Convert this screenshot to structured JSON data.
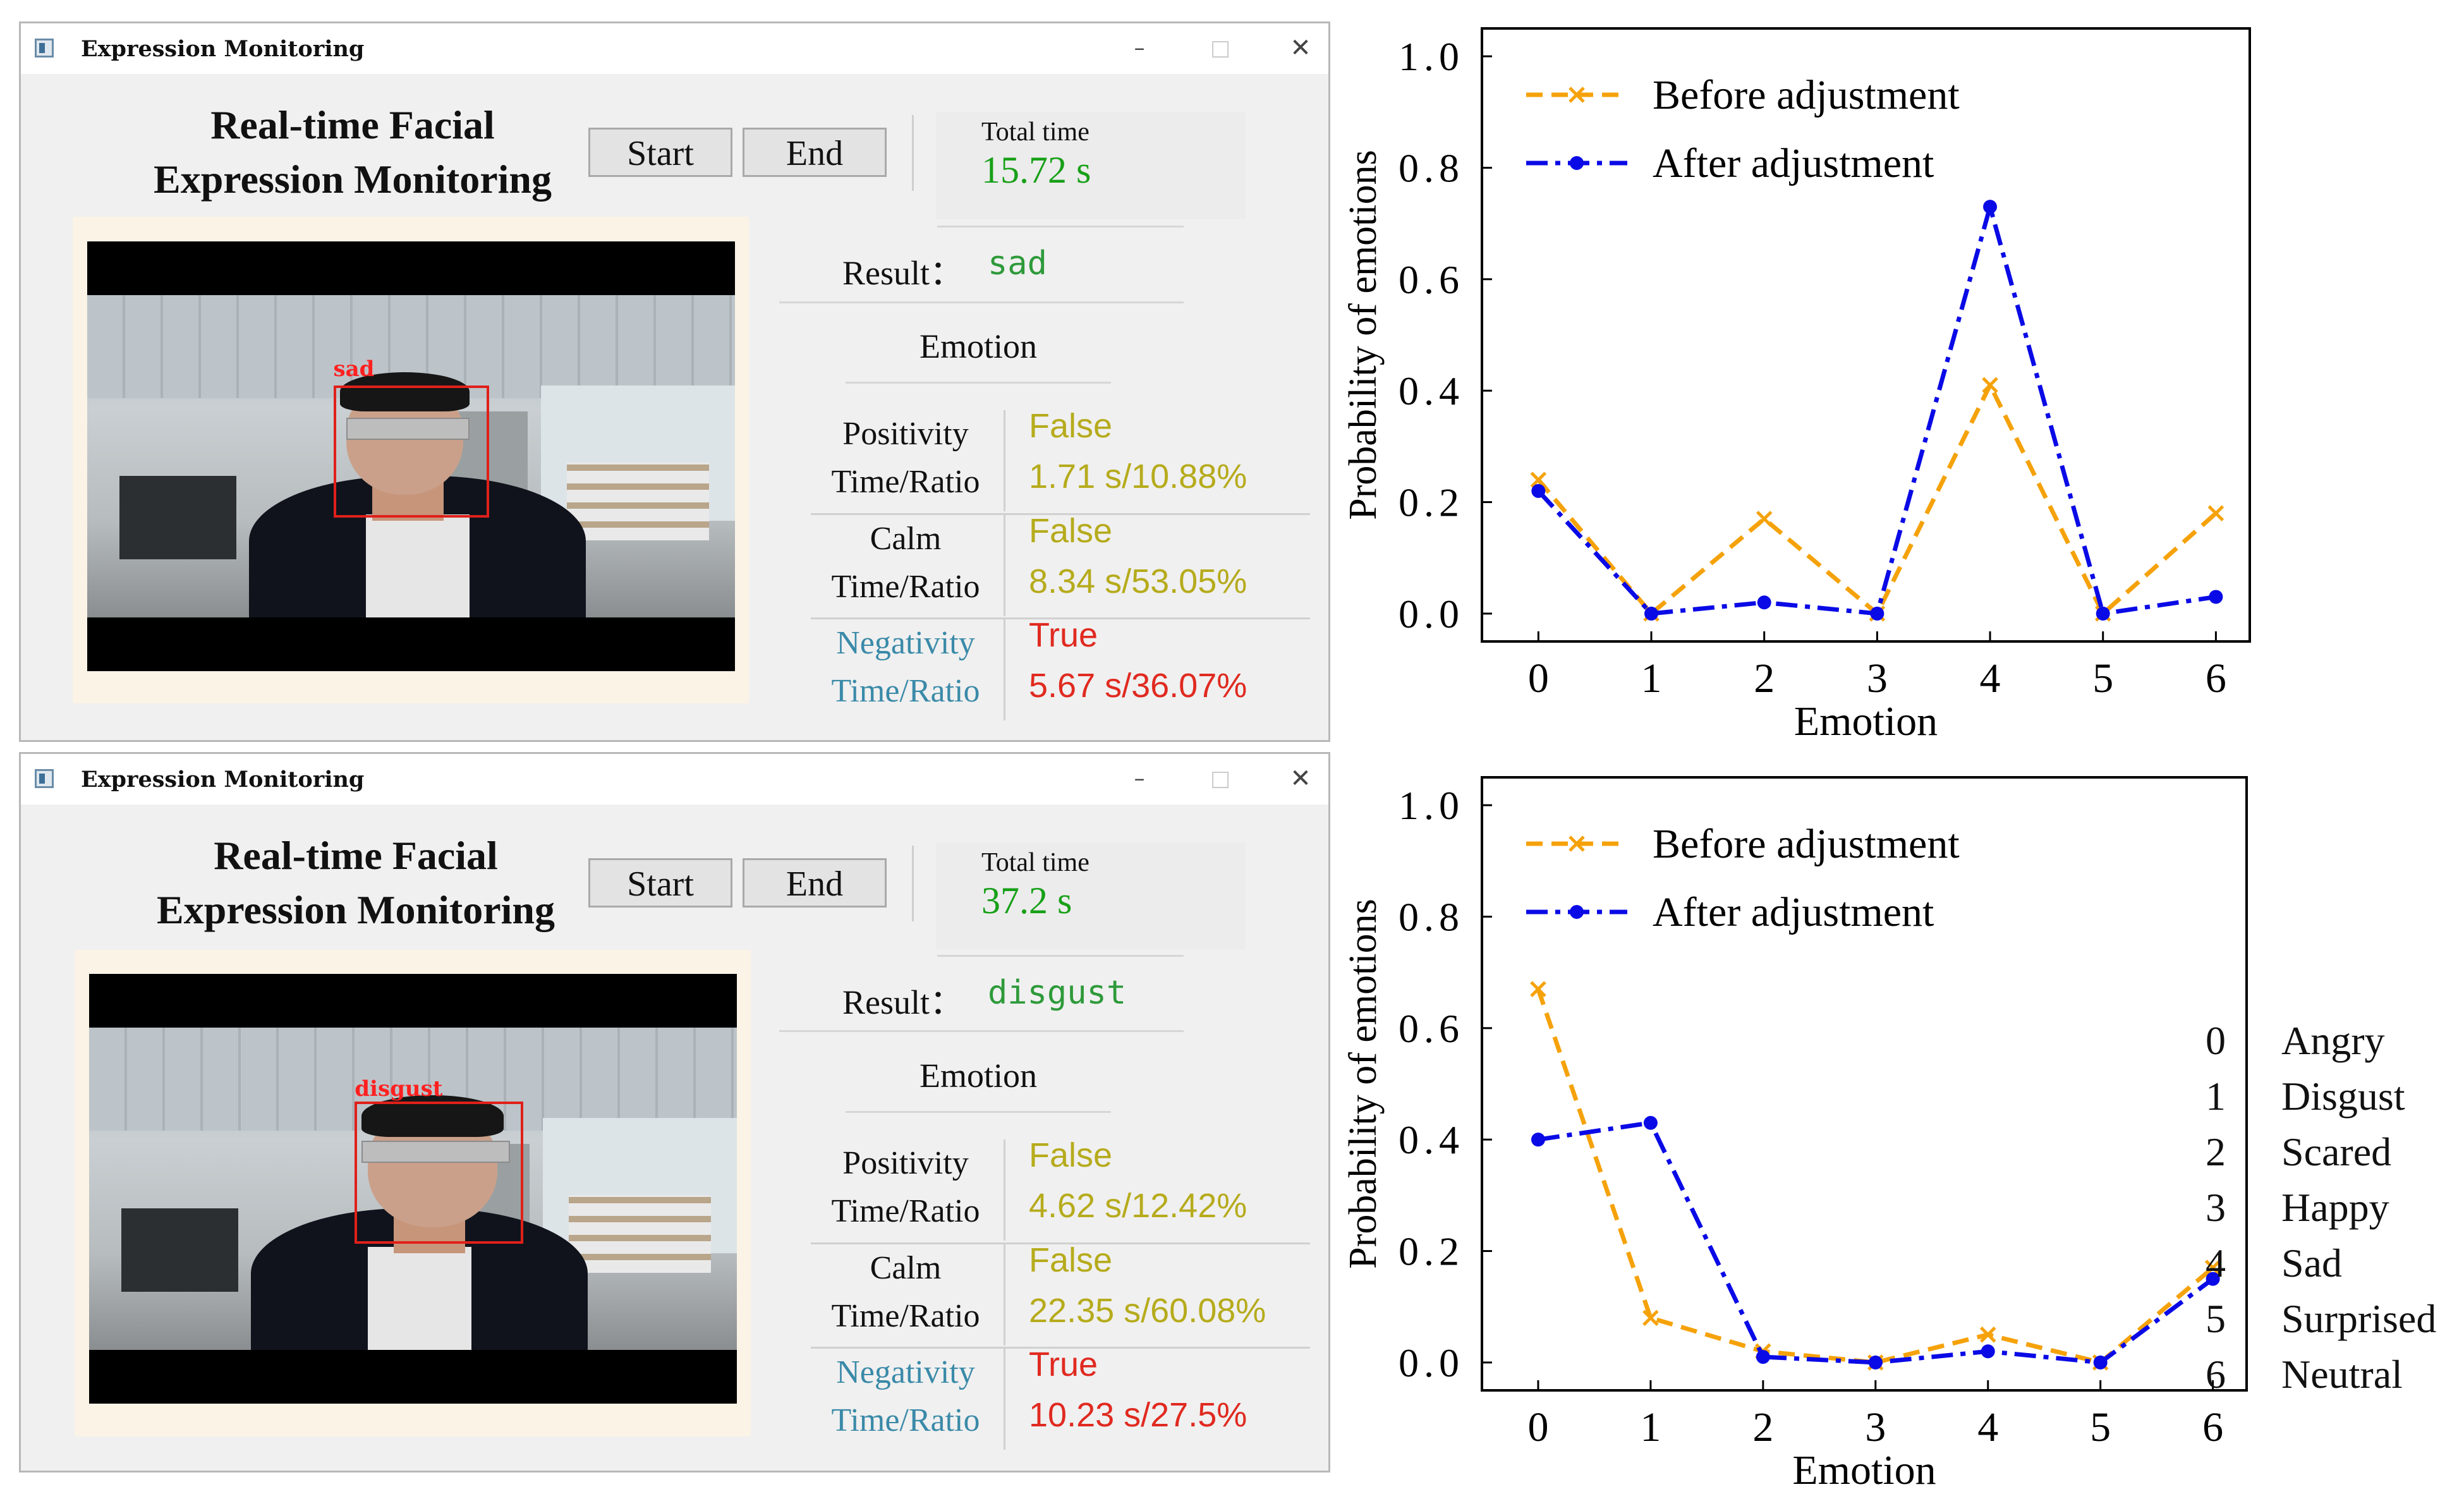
{
  "window_title": "Expression Monitoring",
  "window_controls": {
    "minimize": "–",
    "maximize": "□",
    "close": "✕"
  },
  "heading_line1": "Real-time Facial",
  "heading_line2": "Expression Monitoring",
  "buttons": {
    "start": "Start",
    "end": "End"
  },
  "total_time_label": "Total time",
  "result_label": "Result：",
  "emotion_title": "Emotion",
  "windows": [
    {
      "total_time": "15.72 s",
      "result": "sad",
      "face_label": "sad",
      "stats": [
        {
          "label1": "Positivity",
          "label2": "Time/Ratio",
          "flag": "False",
          "ratio": "1.71 s/10.88%"
        },
        {
          "label1": "Calm",
          "label2": "Time/Ratio",
          "flag": "False",
          "ratio": "8.34 s/53.05%"
        },
        {
          "label1": "Negativity",
          "label2": "Time/Ratio",
          "flag": "True",
          "ratio": "5.67 s/36.07%"
        }
      ]
    },
    {
      "total_time": "37.2 s",
      "result": "disgust",
      "face_label": "disgust",
      "stats": [
        {
          "label1": "Positivity",
          "label2": "Time/Ratio",
          "flag": "False",
          "ratio": "4.62 s/12.42%"
        },
        {
          "label1": "Calm",
          "label2": "Time/Ratio",
          "flag": "False",
          "ratio": "22.35 s/60.08%"
        },
        {
          "label1": "Negativity",
          "label2": "Time/Ratio",
          "flag": "True",
          "ratio": "10.23 s/27.5%"
        }
      ]
    }
  ],
  "colors": {
    "before": "#f5a20a",
    "after": "#0a0ae6",
    "result": "#2e9a3a",
    "total": "#18a018",
    "flag_false": "#b6ab1c",
    "flag_true": "#e02a20",
    "negativity_label": "#3a8aa8"
  },
  "chart_data": [
    {
      "type": "line",
      "xlabel": "Emotion",
      "ylabel": "Probability  of emotions",
      "x": [
        0,
        1,
        2,
        3,
        4,
        5,
        6
      ],
      "ylim": [
        0.0,
        1.0
      ],
      "yticks": [
        "0.0",
        "0.2",
        "0.4",
        "0.6",
        "0.8",
        "1.0"
      ],
      "legend": "top-left",
      "series": [
        {
          "name": "Before adjustment",
          "style": "dashed",
          "marker": "x",
          "values": [
            0.24,
            0.0,
            0.17,
            0.0,
            0.41,
            0.0,
            0.18
          ]
        },
        {
          "name": "After adjustment",
          "style": "dashdot",
          "marker": "circle",
          "values": [
            0.22,
            0.0,
            0.02,
            0.0,
            0.73,
            0.0,
            0.03
          ]
        }
      ]
    },
    {
      "type": "line",
      "xlabel": "Emotion",
      "ylabel": "Probability  of emotions",
      "x": [
        0,
        1,
        2,
        3,
        4,
        5,
        6
      ],
      "ylim": [
        0.0,
        1.0
      ],
      "yticks": [
        "0.0",
        "0.2",
        "0.4",
        "0.6",
        "0.8",
        "1.0"
      ],
      "legend": "top-left",
      "series": [
        {
          "name": "Before adjustment",
          "style": "dashed",
          "marker": "x",
          "values": [
            0.67,
            0.08,
            0.02,
            0.0,
            0.05,
            0.0,
            0.17
          ]
        },
        {
          "name": "After adjustment",
          "style": "dashdot",
          "marker": "circle",
          "values": [
            0.4,
            0.43,
            0.01,
            0.0,
            0.02,
            0.0,
            0.15
          ]
        }
      ]
    }
  ],
  "emotion_key": [
    {
      "num": "0",
      "name": "Angry"
    },
    {
      "num": "1",
      "name": "Disgust"
    },
    {
      "num": "2",
      "name": "Scared"
    },
    {
      "num": "3",
      "name": "Happy"
    },
    {
      "num": "4",
      "name": "Sad"
    },
    {
      "num": "5",
      "name": "Surprised"
    },
    {
      "num": "6",
      "name": "Neutral"
    }
  ]
}
